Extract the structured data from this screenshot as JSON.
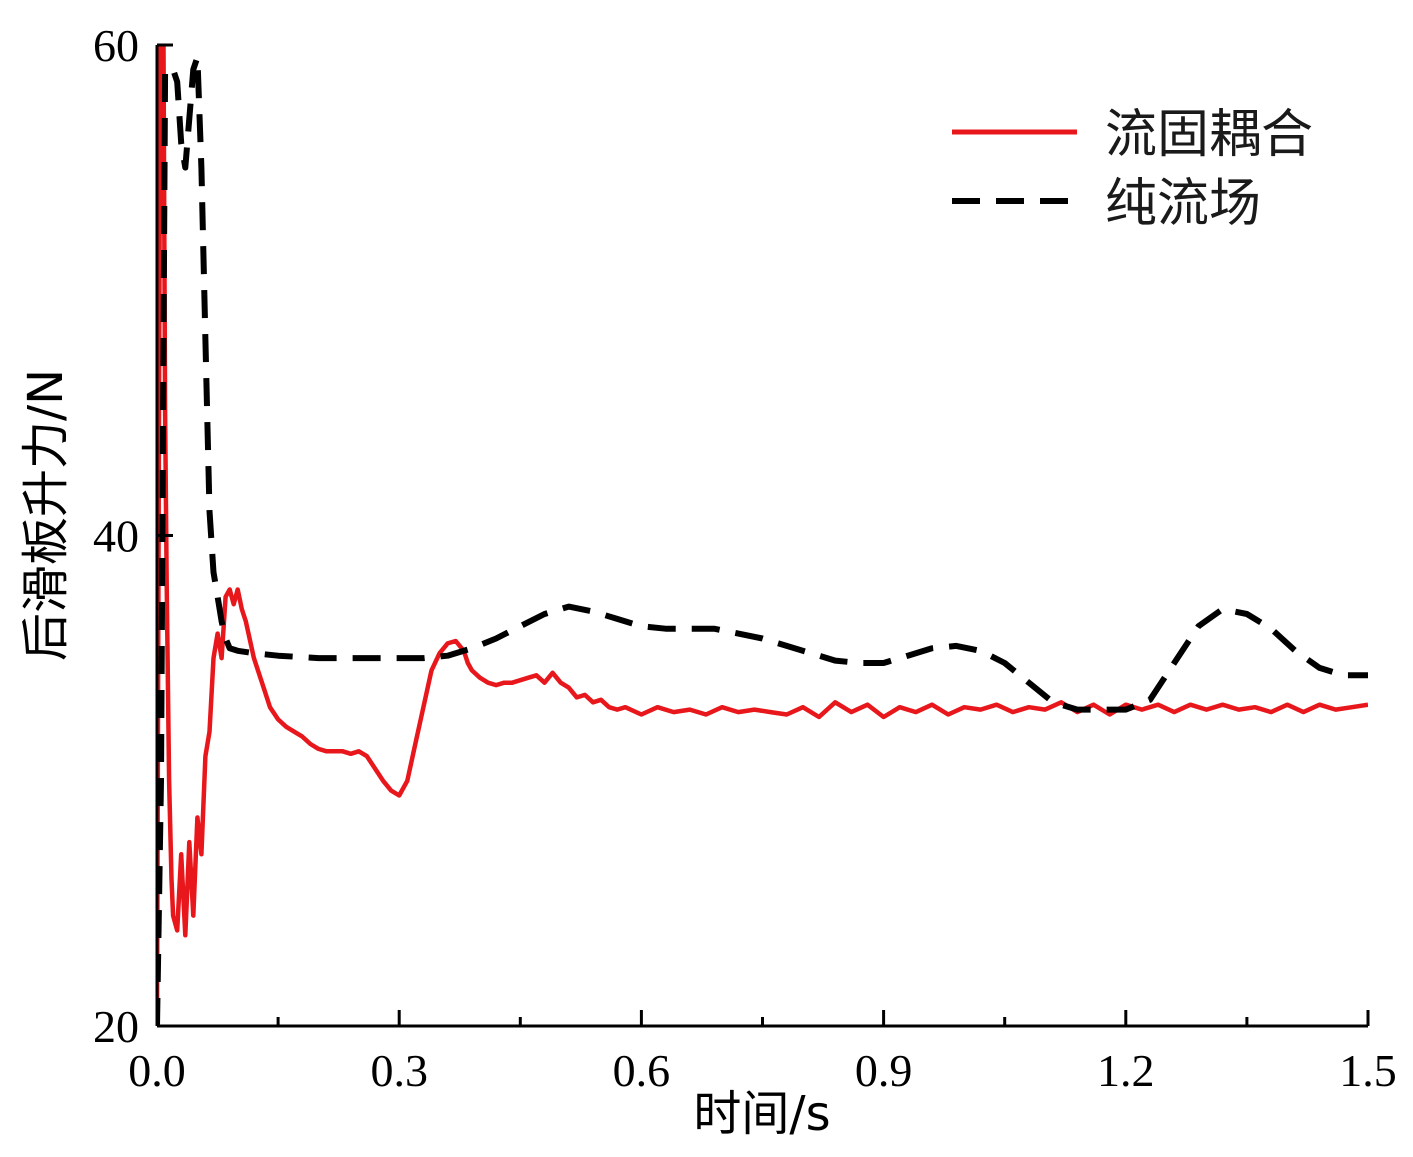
{
  "chart_data": {
    "type": "line",
    "title": "",
    "xlabel": "时间/s",
    "ylabel": "后滑板升力/N",
    "xlim": [
      0,
      1.5
    ],
    "ylim": [
      20,
      60
    ],
    "xticks": [
      "0.0",
      "0.3",
      "0.6",
      "0.9",
      "1.2",
      "1.5"
    ],
    "yticks": [
      "20",
      "40",
      "60"
    ],
    "legend_position": "top-right",
    "grid": false,
    "series": [
      {
        "name": "流固耦合",
        "color": "#e8171c",
        "style": "solid",
        "x": [
          0.0,
          0.004,
          0.008,
          0.01,
          0.012,
          0.015,
          0.018,
          0.02,
          0.025,
          0.03,
          0.035,
          0.04,
          0.045,
          0.05,
          0.055,
          0.06,
          0.065,
          0.07,
          0.075,
          0.08,
          0.085,
          0.09,
          0.095,
          0.1,
          0.105,
          0.11,
          0.12,
          0.13,
          0.14,
          0.15,
          0.16,
          0.17,
          0.18,
          0.19,
          0.2,
          0.21,
          0.22,
          0.23,
          0.24,
          0.25,
          0.26,
          0.27,
          0.28,
          0.29,
          0.3,
          0.31,
          0.32,
          0.33,
          0.34,
          0.35,
          0.36,
          0.37,
          0.38,
          0.385,
          0.39,
          0.4,
          0.41,
          0.42,
          0.43,
          0.44,
          0.45,
          0.46,
          0.47,
          0.48,
          0.49,
          0.5,
          0.51,
          0.52,
          0.53,
          0.54,
          0.55,
          0.56,
          0.57,
          0.58,
          0.6,
          0.62,
          0.64,
          0.66,
          0.68,
          0.7,
          0.72,
          0.74,
          0.76,
          0.78,
          0.8,
          0.82,
          0.84,
          0.86,
          0.88,
          0.9,
          0.92,
          0.94,
          0.96,
          0.98,
          1.0,
          1.02,
          1.04,
          1.06,
          1.08,
          1.1,
          1.12,
          1.14,
          1.16,
          1.18,
          1.2,
          1.22,
          1.24,
          1.26,
          1.28,
          1.3,
          1.32,
          1.34,
          1.36,
          1.38,
          1.4,
          1.42,
          1.44,
          1.46,
          1.48,
          1.5
        ],
        "y": [
          20.0,
          60.0,
          60.0,
          45.0,
          38.0,
          30.0,
          26.0,
          24.5,
          23.9,
          27.0,
          23.7,
          27.5,
          24.5,
          28.5,
          27.0,
          31.0,
          32.0,
          35.0,
          36.0,
          35.0,
          37.5,
          37.8,
          37.2,
          37.8,
          37.0,
          36.5,
          35.0,
          34.0,
          33.0,
          32.5,
          32.2,
          32.0,
          31.8,
          31.5,
          31.3,
          31.2,
          31.2,
          31.2,
          31.1,
          31.2,
          31.0,
          30.5,
          30.0,
          29.6,
          29.4,
          30.0,
          31.5,
          33.0,
          34.5,
          35.2,
          35.6,
          35.7,
          35.3,
          34.8,
          34.5,
          34.2,
          34.0,
          33.9,
          34.0,
          34.0,
          34.1,
          34.2,
          34.3,
          34.0,
          34.4,
          34.0,
          33.8,
          33.4,
          33.5,
          33.2,
          33.3,
          33.0,
          32.9,
          33.0,
          32.7,
          33.0,
          32.8,
          32.9,
          32.7,
          33.0,
          32.8,
          32.9,
          32.8,
          32.7,
          33.0,
          32.6,
          33.2,
          32.8,
          33.1,
          32.6,
          33.0,
          32.8,
          33.1,
          32.7,
          33.0,
          32.9,
          33.1,
          32.8,
          33.0,
          32.9,
          33.2,
          32.8,
          33.1,
          32.7,
          33.1,
          32.9,
          33.1,
          32.8,
          33.1,
          32.9,
          33.1,
          32.9,
          33.0,
          32.8,
          33.1,
          32.8,
          33.1,
          32.9,
          33.0,
          33.1
        ]
      },
      {
        "name": "纯流场",
        "color": "#000000",
        "style": "dashed",
        "x": [
          0.0,
          0.005,
          0.01,
          0.015,
          0.02,
          0.025,
          0.03,
          0.035,
          0.04,
          0.045,
          0.05,
          0.055,
          0.06,
          0.065,
          0.07,
          0.075,
          0.08,
          0.085,
          0.09,
          0.1,
          0.12,
          0.15,
          0.2,
          0.25,
          0.3,
          0.33,
          0.36,
          0.39,
          0.42,
          0.45,
          0.48,
          0.51,
          0.54,
          0.57,
          0.6,
          0.63,
          0.66,
          0.69,
          0.72,
          0.75,
          0.78,
          0.81,
          0.84,
          0.87,
          0.9,
          0.93,
          0.96,
          0.99,
          1.02,
          1.05,
          1.08,
          1.11,
          1.14,
          1.17,
          1.2,
          1.23,
          1.26,
          1.29,
          1.32,
          1.35,
          1.38,
          1.41,
          1.44,
          1.47,
          1.5
        ],
        "y": [
          20.0,
          30.0,
          59.0,
          59.0,
          59.0,
          58.5,
          56.0,
          55.0,
          57.0,
          59.0,
          59.5,
          55.0,
          48.0,
          41.0,
          38.5,
          37.5,
          36.5,
          35.8,
          35.4,
          35.3,
          35.2,
          35.1,
          35.0,
          35.0,
          35.0,
          35.0,
          35.1,
          35.4,
          35.8,
          36.3,
          36.8,
          37.1,
          36.9,
          36.6,
          36.3,
          36.2,
          36.2,
          36.2,
          36.0,
          35.8,
          35.5,
          35.2,
          34.9,
          34.8,
          34.8,
          35.1,
          35.4,
          35.5,
          35.3,
          34.8,
          34.0,
          33.2,
          32.9,
          32.9,
          32.9,
          33.3,
          34.8,
          36.3,
          37.0,
          36.8,
          36.2,
          35.3,
          34.6,
          34.3,
          34.3
        ]
      }
    ]
  }
}
